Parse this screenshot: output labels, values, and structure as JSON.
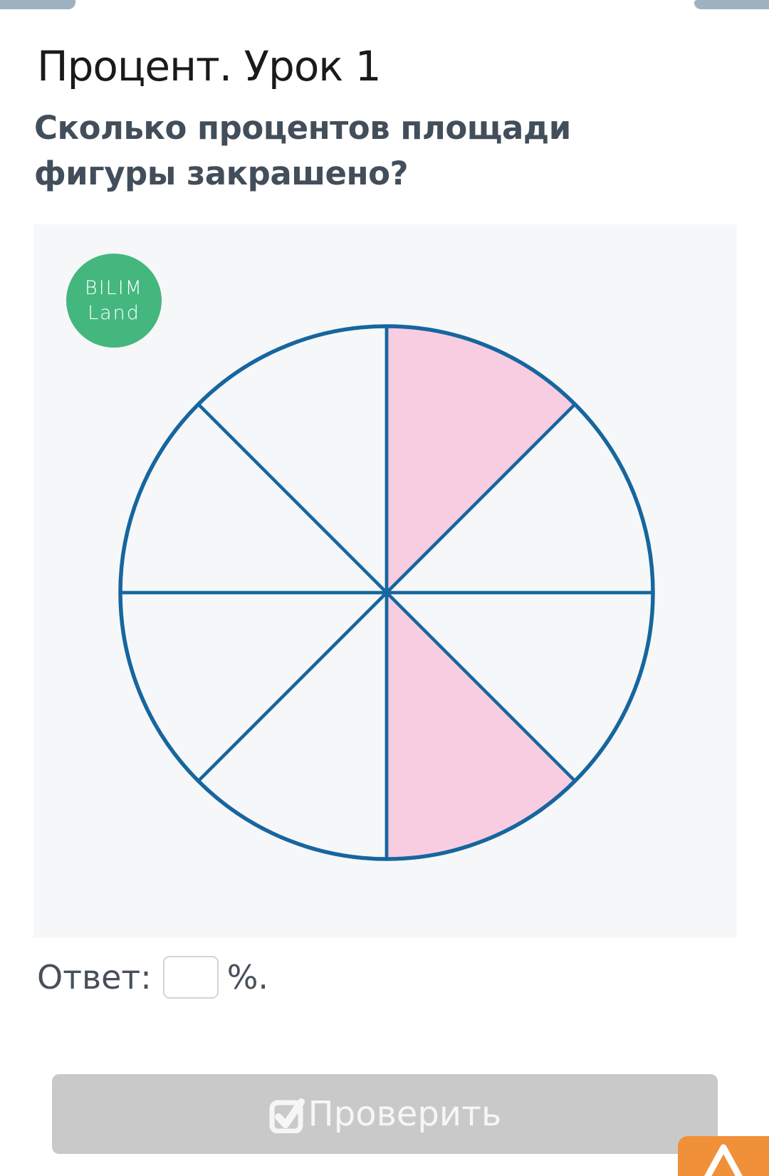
{
  "header": {
    "title": "Процент. Урок 1"
  },
  "question": {
    "text": "Сколько процентов площади фигуры закрашено?"
  },
  "logo": {
    "line1": "BILIM",
    "line2": "Land",
    "background_color": "#43b77e",
    "text_color": "#ffffff"
  },
  "figure": {
    "type": "circle-sectors",
    "total_sectors": 8,
    "shaded_sector_indices_clockwise_from_top": [
      0,
      3
    ],
    "shaded_count": 2,
    "stroke_color": "#16669f",
    "shaded_fill_color": "#f8cde1",
    "unshaded_fill_color": "none"
  },
  "answer": {
    "label": "Ответ:",
    "input_value": "",
    "suffix": "%."
  },
  "toolbar": {
    "check_label": "Проверить"
  },
  "colors": {
    "accent_blue": "#16669f",
    "pink": "#f8cde1",
    "green": "#43b77e",
    "orange": "#f09038",
    "button_gray": "#c9c9c9",
    "tab_gray_blue": "#9fb2c1",
    "panel_background": "#f6f7f8",
    "question_text": "#424e5a"
  }
}
